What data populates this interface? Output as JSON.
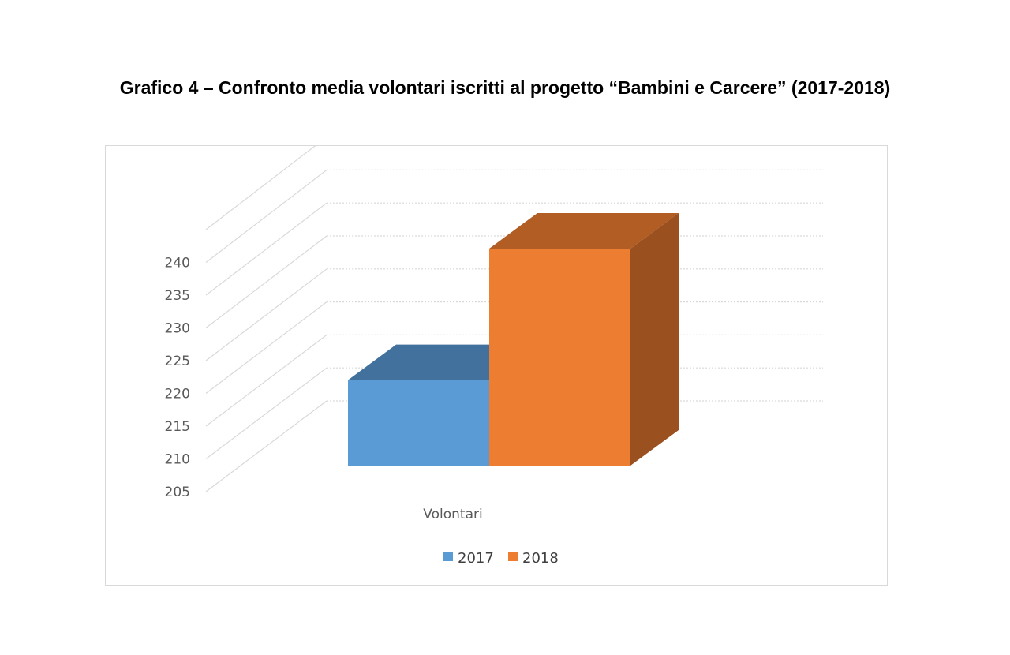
{
  "page_title": "Grafico 4 – Confronto media volontari iscritti al progetto “Bambini e Carcere” (2017-2018)",
  "chart_data": {
    "type": "bar",
    "style": "3d-column",
    "title": "",
    "categories": [
      "Volontari"
    ],
    "series": [
      {
        "name": "2017",
        "values": [
          220
        ],
        "color": "#5b9bd5",
        "top_color": "#41719c",
        "side_color": "#3b6a94"
      },
      {
        "name": "2018",
        "values": [
          240
        ],
        "color": "#ed7d31",
        "top_color": "#b25d24",
        "side_color": "#9b511f"
      }
    ],
    "xlabel": "",
    "ylabel": "",
    "ylim": [
      205,
      240
    ],
    "yticks": [
      205,
      210,
      215,
      220,
      225,
      230,
      235,
      240
    ],
    "grid": true,
    "legend": "bottom"
  }
}
